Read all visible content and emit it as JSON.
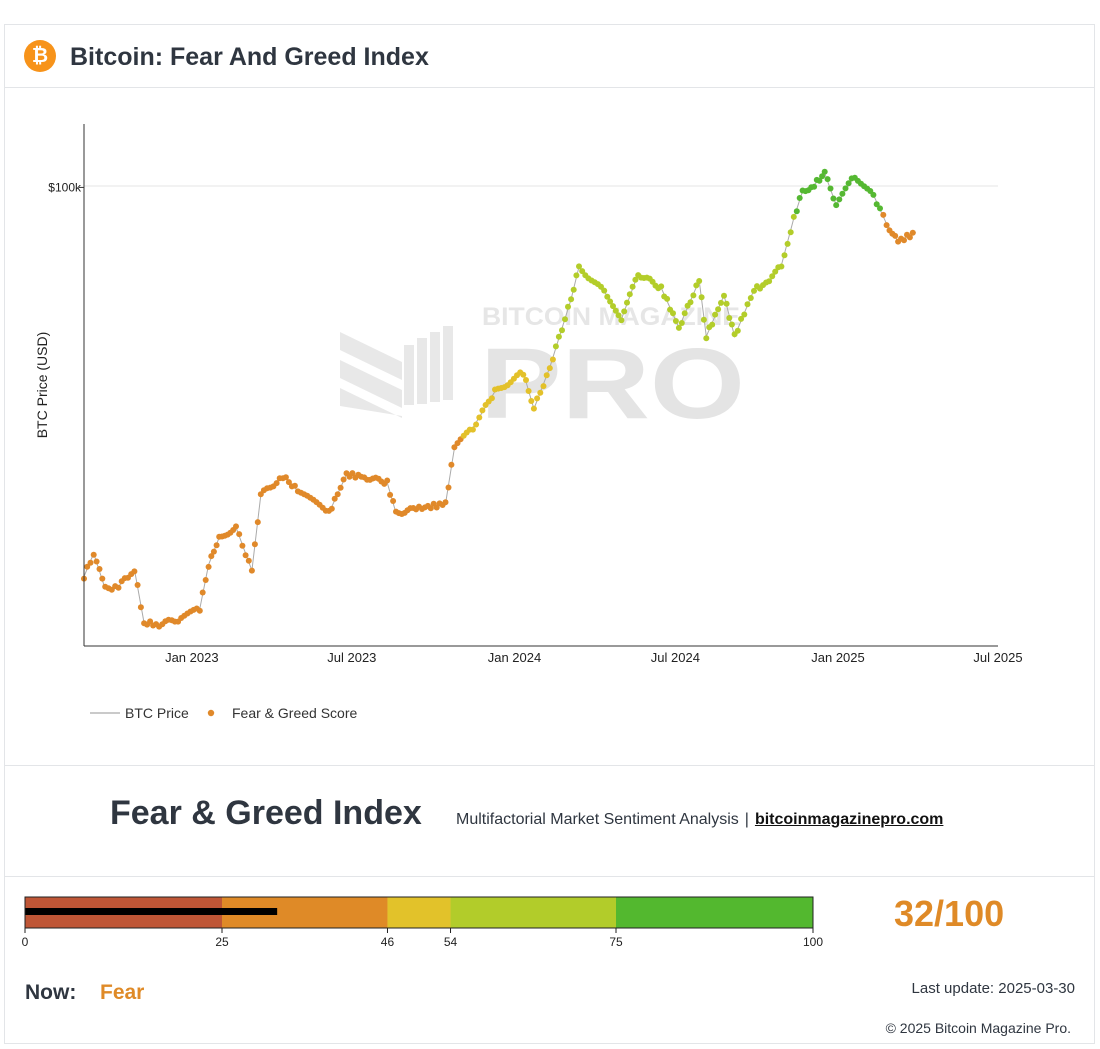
{
  "header": {
    "logo_glyph": "₿",
    "title": "Bitcoin: Fear And Greed Index"
  },
  "watermark": {
    "top_text": "BITCOIN MAGAZINE",
    "big_text": "PRO"
  },
  "chart_data": {
    "type": "scatter",
    "ylabel": "BTC Price (USD)",
    "y_scale": "log",
    "ylim": [
      15000,
      130000
    ],
    "xlim": [
      "2022-09-01",
      "2025-07-01"
    ],
    "y_ticks": [
      {
        "value": 100000,
        "label": "$100k"
      }
    ],
    "x_ticks": [
      {
        "value": "2023-01-01",
        "label": "Jan 2023"
      },
      {
        "value": "2023-07-01",
        "label": "Jul 2023"
      },
      {
        "value": "2024-01-01",
        "label": "Jan 2024"
      },
      {
        "value": "2024-07-01",
        "label": "Jul 2024"
      },
      {
        "value": "2025-01-01",
        "label": "Jan 2025"
      },
      {
        "value": "2025-07-01",
        "label": "Jul 2025"
      }
    ],
    "legend": {
      "position": "bottom-left",
      "entries": [
        "BTC Price",
        "Fear & Greed Score"
      ]
    },
    "grid": "horizontal",
    "series": [
      {
        "name": "BTC Price",
        "color": "#aaaaaa",
        "points": [
          [
            "2022-09-01",
            20000
          ],
          [
            "2022-09-12",
            22000
          ],
          [
            "2022-09-25",
            19000
          ],
          [
            "2022-10-10",
            19200
          ],
          [
            "2022-10-28",
            20600
          ],
          [
            "2022-11-08",
            16500
          ],
          [
            "2022-11-25",
            16400
          ],
          [
            "2022-12-20",
            16800
          ],
          [
            "2023-01-10",
            17500
          ],
          [
            "2023-01-20",
            21000
          ],
          [
            "2023-02-01",
            23500
          ],
          [
            "2023-02-20",
            24500
          ],
          [
            "2023-03-10",
            20500
          ],
          [
            "2023-03-20",
            28000
          ],
          [
            "2023-04-14",
            30300
          ],
          [
            "2023-05-01",
            28500
          ],
          [
            "2023-06-05",
            26000
          ],
          [
            "2023-06-25",
            30500
          ],
          [
            "2023-07-15",
            30200
          ],
          [
            "2023-08-10",
            29500
          ],
          [
            "2023-08-20",
            26000
          ],
          [
            "2023-09-15",
            26500
          ],
          [
            "2023-10-15",
            27000
          ],
          [
            "2023-10-25",
            34000
          ],
          [
            "2023-11-15",
            37000
          ],
          [
            "2023-12-10",
            43000
          ],
          [
            "2024-01-11",
            46500
          ],
          [
            "2024-01-23",
            40000
          ],
          [
            "2024-02-10",
            47500
          ],
          [
            "2024-03-05",
            63000
          ],
          [
            "2024-03-14",
            72000
          ],
          [
            "2024-04-15",
            64000
          ],
          [
            "2024-05-01",
            58000
          ],
          [
            "2024-05-20",
            70000
          ],
          [
            "2024-06-15",
            66000
          ],
          [
            "2024-07-05",
            56000
          ],
          [
            "2024-07-28",
            68000
          ],
          [
            "2024-08-05",
            54000
          ],
          [
            "2024-08-25",
            64000
          ],
          [
            "2024-09-06",
            54000
          ],
          [
            "2024-09-28",
            65500
          ],
          [
            "2024-10-15",
            67500
          ],
          [
            "2024-10-29",
            72500
          ],
          [
            "2024-11-12",
            88000
          ],
          [
            "2024-11-22",
            98500
          ],
          [
            "2024-12-05",
            101000
          ],
          [
            "2024-12-17",
            106000
          ],
          [
            "2024-12-30",
            93000
          ],
          [
            "2025-01-20",
            105000
          ],
          [
            "2025-02-10",
            97000
          ],
          [
            "2025-02-25",
            86000
          ],
          [
            "2025-03-10",
            80000
          ],
          [
            "2025-03-30",
            83000
          ]
        ]
      },
      {
        "name": "Fear & Greed Score",
        "color_scale": [
          {
            "from": 0,
            "to": 25,
            "color": "#c0583c"
          },
          {
            "from": 25,
            "to": 46,
            "color": "#e0892a"
          },
          {
            "from": 46,
            "to": 54,
            "color": "#e3c12a"
          },
          {
            "from": 54,
            "to": 75,
            "color": "#b3cd2a"
          },
          {
            "from": 75,
            "to": 100,
            "color": "#55b832"
          }
        ]
      }
    ]
  },
  "fg_section": {
    "title": "Fear & Greed Index",
    "subtitle": "Multifactorial Market Sentiment Analysis",
    "separator": "|",
    "link": "bitcoinmagazinepro.com"
  },
  "gauge": {
    "segments": [
      {
        "from": 0,
        "to": 25,
        "color": "#bf5636"
      },
      {
        "from": 25,
        "to": 46,
        "color": "#df8a27"
      },
      {
        "from": 46,
        "to": 54,
        "color": "#e2c22a"
      },
      {
        "from": 54,
        "to": 75,
        "color": "#b2cc2a"
      },
      {
        "from": 75,
        "to": 100,
        "color": "#53b82f"
      }
    ],
    "ticks": [
      "0",
      "25",
      "46",
      "54",
      "75",
      "100"
    ],
    "value": 32,
    "score_text": "32/100"
  },
  "status": {
    "now_label": "Now:",
    "now_value": "Fear",
    "last_update": "Last update: 2025-03-30",
    "copyright": "© 2025 Bitcoin Magazine Pro."
  }
}
